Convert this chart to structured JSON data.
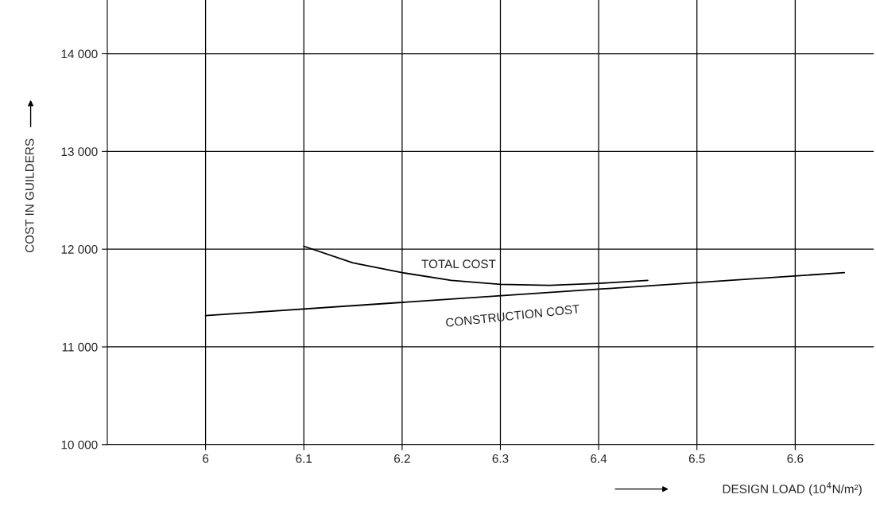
{
  "chart_data": {
    "type": "line",
    "xlabel": "DESIGN LOAD (10$^{4}$N/m²)",
    "ylabel": "COST IN GUILDERS",
    "xlim": [
      5.9,
      6.68
    ],
    "ylim": [
      10000,
      14550
    ],
    "xticks": [
      6,
      6.1,
      6.2,
      6.3,
      6.4,
      6.5,
      6.6
    ],
    "yticks": [
      {
        "value": 10000,
        "label": "10 000"
      },
      {
        "value": 11000,
        "label": "11 000"
      },
      {
        "value": 12000,
        "label": "12 000"
      },
      {
        "value": 13000,
        "label": "13 000"
      },
      {
        "value": 14000,
        "label": "14 000"
      }
    ],
    "grid": true,
    "legend": false,
    "series": [
      {
        "name": "TOTAL COST",
        "color": "#000000",
        "x": [
          6.1,
          6.15,
          6.2,
          6.25,
          6.3,
          6.35,
          6.4,
          6.45
        ],
        "values": [
          12030,
          11860,
          11760,
          11680,
          11640,
          11630,
          11650,
          11680
        ]
      },
      {
        "name": "CONSTRUCTION COST",
        "color": "#000000",
        "x": [
          6.0,
          6.65
        ],
        "values": [
          11320,
          11760
        ]
      }
    ]
  }
}
